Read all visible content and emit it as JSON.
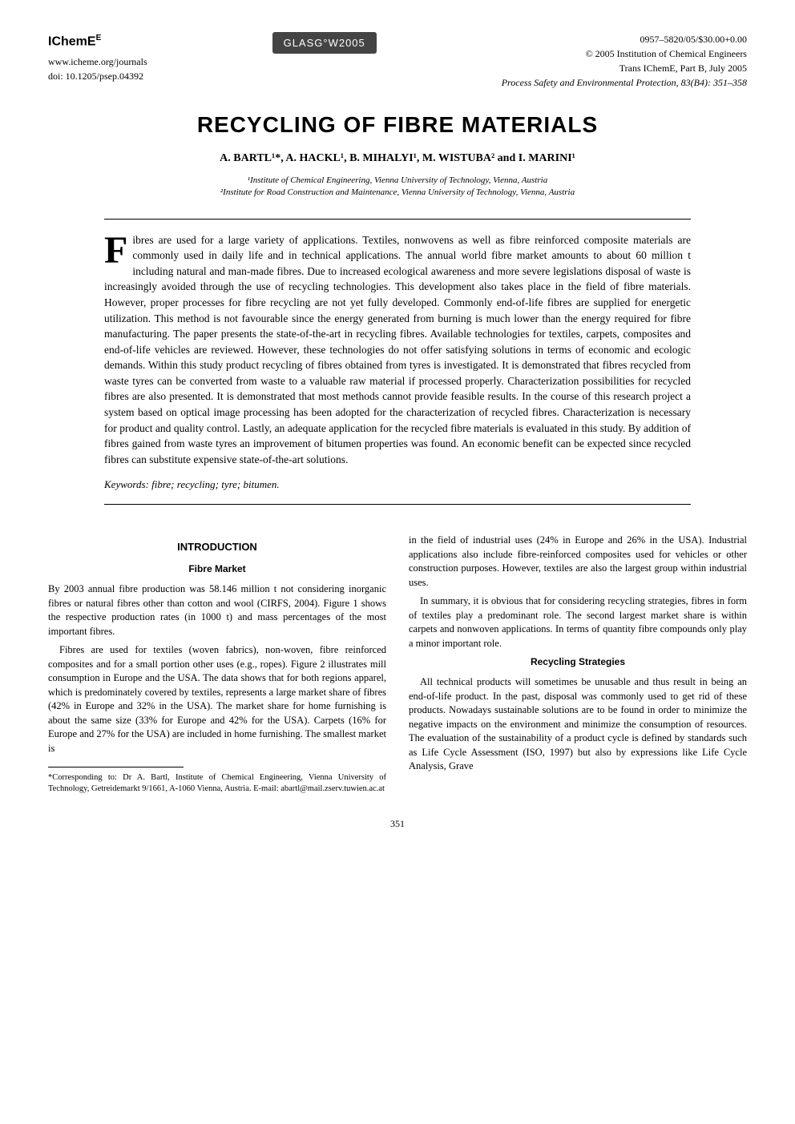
{
  "header": {
    "logo": "IChemE",
    "website": "www.icheme.org/journals",
    "doi": "doi: 10.1205/psep.04392",
    "glasgow": "GLASG°W2005",
    "issn": "0957–5820/05/$30.00+0.00",
    "copyright": "© 2005 Institution of Chemical Engineers",
    "trans": "Trans IChemE, Part B, July 2005",
    "journal": "Process Safety and Environmental Protection, 83(B4): 351–358"
  },
  "title": "RECYCLING OF FIBRE MATERIALS",
  "authors": "A. BARTL¹*, A. HACKL¹, B. MIHALYI¹, M. WISTUBA² and I. MARINI¹",
  "affiliations": {
    "a1": "¹Institute of Chemical Engineering, Vienna University of Technology, Vienna, Austria",
    "a2": "²Institute for Road Construction and Maintenance, Vienna University of Technology, Vienna, Austria"
  },
  "abstract": {
    "dropcap": "F",
    "text": "ibres are used for a large variety of applications. Textiles, nonwovens as well as fibre reinforced composite materials are commonly used in daily life and in technical applications. The annual world fibre market amounts to about 60 million t including natural and man-made fibres. Due to increased ecological awareness and more severe legislations disposal of waste is increasingly avoided through the use of recycling technologies. This development also takes place in the field of fibre materials. However, proper processes for fibre recycling are not yet fully developed. Commonly end-of-life fibres are supplied for energetic utilization. This method is not favourable since the energy generated from burning is much lower than the energy required for fibre manufacturing. The paper presents the state-of-the-art in recycling fibres. Available technologies for textiles, carpets, composites and end-of-life vehicles are reviewed. However, these technologies do not offer satisfying solutions in terms of economic and ecologic demands. Within this study product recycling of fibres obtained from tyres is investigated. It is demonstrated that fibres recycled from waste tyres can be converted from waste to a valuable raw material if processed properly. Characterization possibilities for recycled fibres are also presented. It is demonstrated that most methods cannot provide feasible results. In the course of this research project a system based on optical image processing has been adopted for the characterization of recycled fibres. Characterization is necessary for product and quality control. Lastly, an adequate application for the recycled fibre materials is evaluated in this study. By addition of fibres gained from waste tyres an improvement of bitumen properties was found. An economic benefit can be expected since recycled fibres can substitute expensive state-of-the-art solutions."
  },
  "keywords": "Keywords: fibre; recycling; tyre; bitumen.",
  "section_intro": "INTRODUCTION",
  "subhead_fibre": "Fibre Market",
  "left_p1": "By 2003 annual fibre production was 58.146 million t not considering inorganic fibres or natural fibres other than cotton and wool (CIRFS, 2004). Figure 1 shows the respective production rates (in 1000 t) and mass percentages of the most important fibres.",
  "left_p2": "Fibres are used for textiles (woven fabrics), non-woven, fibre reinforced composites and for a small portion other uses (e.g., ropes). Figure 2 illustrates mill consumption in Europe and the USA. The data shows that for both regions apparel, which is predominately covered by textiles, represents a large market share of fibres (42% in Europe and 32% in the USA). The market share for home furnishing is about the same size (33% for Europe and 42% for the USA). Carpets (16% for Europe and 27% for the USA) are included in home furnishing. The smallest market is",
  "right_p1": "in the field of industrial uses (24% in Europe and 26% in the USA). Industrial applications also include fibre-reinforced composites used for vehicles or other construction purposes. However, textiles are also the largest group within industrial uses.",
  "right_p2": "In summary, it is obvious that for considering recycling strategies, fibres in form of textiles play a predominant role. The second largest market share is within carpets and nonwoven applications. In terms of quantity fibre compounds only play a minor important role.",
  "subhead_recycling": "Recycling Strategies",
  "right_p3": "All technical products will sometimes be unusable and thus result in being an end-of-life product. In the past, disposal was commonly used to get rid of these products. Nowadays sustainable solutions are to be found in order to minimize the negative impacts on the environment and minimize the consumption of resources. The evaluation of the sustainability of a product cycle is defined by standards such as Life Cycle Assessment (ISO, 1997) but also by expressions like Life Cycle Analysis, Grave",
  "footnote": "*Corresponding to: Dr A. Bartl, Institute of Chemical Engineering, Vienna University of Technology, Getreidemarkt 9/1661, A-1060 Vienna, Austria. E-mail: abartl@mail.zserv.tuwien.ac.at",
  "pagenum": "351"
}
